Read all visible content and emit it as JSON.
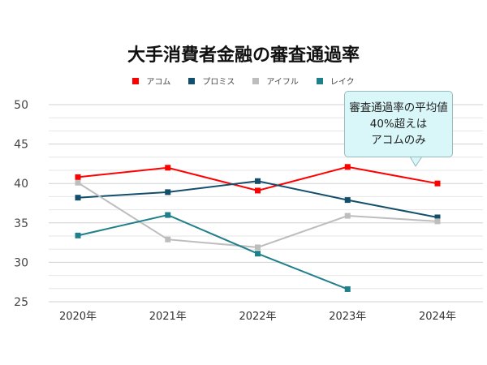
{
  "chart_data": {
    "type": "line",
    "title": "大手消費者金融の審査通過率",
    "categories": [
      "2020年",
      "2021年",
      "2022年",
      "2023年",
      "2024年"
    ],
    "ylim": [
      25,
      50
    ],
    "yticks": [
      25,
      30,
      35,
      40,
      45,
      50
    ],
    "grid": true,
    "legend_position": "top",
    "series": [
      {
        "name": "アコム",
        "color": "#ff0000",
        "values": [
          40.8,
          42.0,
          39.1,
          42.1,
          40.0
        ]
      },
      {
        "name": "プロミス",
        "color": "#134f6b",
        "values": [
          38.2,
          38.9,
          40.3,
          37.9,
          35.7
        ]
      },
      {
        "name": "アイフル",
        "color": "#bdbdbd",
        "values": [
          40.1,
          32.9,
          31.9,
          35.9,
          35.2
        ]
      },
      {
        "name": "レイク",
        "color": "#1f7f8a",
        "values": [
          33.4,
          36.0,
          31.1,
          26.6,
          null
        ]
      }
    ],
    "annotation": [
      "審査通過率の平均値",
      "40%超えは",
      "アコムのみ"
    ]
  }
}
